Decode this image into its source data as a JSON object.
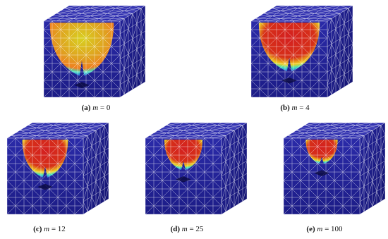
{
  "panels": [
    {
      "tag": "(a)",
      "variable": "m",
      "equals": "= 0"
    },
    {
      "tag": "(b)",
      "variable": "m",
      "equals": "= 4"
    },
    {
      "tag": "(c)",
      "variable": "m",
      "equals": "= 12"
    },
    {
      "tag": "(d)",
      "variable": "m",
      "equals": "= 25"
    },
    {
      "tag": "(e)",
      "variable": "m",
      "equals": "= 100"
    }
  ]
}
